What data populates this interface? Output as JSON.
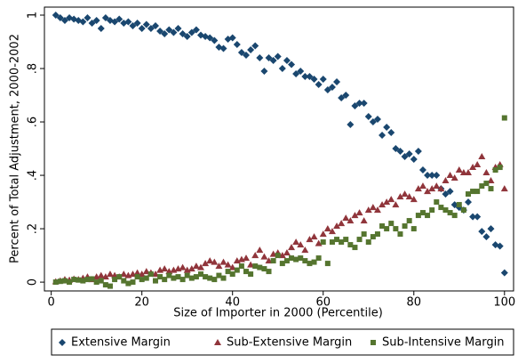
{
  "chart_data": {
    "type": "scatter",
    "xlabel": "Size of Importer in 2000 (Percentile)",
    "ylabel": "Percent of Total Adjustment, 2000-2002",
    "x": [
      1,
      2,
      3,
      4,
      5,
      6,
      7,
      8,
      9,
      10,
      11,
      12,
      13,
      14,
      15,
      16,
      17,
      18,
      19,
      20,
      21,
      22,
      23,
      24,
      25,
      26,
      27,
      28,
      29,
      30,
      31,
      32,
      33,
      34,
      35,
      36,
      37,
      38,
      39,
      40,
      41,
      42,
      43,
      44,
      45,
      46,
      47,
      48,
      49,
      50,
      51,
      52,
      53,
      54,
      55,
      56,
      57,
      58,
      59,
      60,
      61,
      62,
      63,
      64,
      65,
      66,
      67,
      68,
      69,
      70,
      71,
      72,
      73,
      74,
      75,
      76,
      77,
      78,
      79,
      80,
      81,
      82,
      83,
      84,
      85,
      86,
      87,
      88,
      89,
      90,
      91,
      92,
      93,
      94,
      95,
      96,
      97,
      98,
      99,
      100
    ],
    "xlim": [
      -1.5,
      102
    ],
    "ylim": [
      -0.033,
      1.03
    ],
    "xticks": [
      0,
      20,
      40,
      60,
      80,
      100
    ],
    "yticks": [
      0,
      {
        "value": 0.2,
        "label": ".2"
      },
      {
        "value": 0.4,
        "label": ".4"
      },
      {
        "value": 0.6,
        "label": ".6"
      },
      {
        "value": 0.8,
        "label": ".8"
      },
      1
    ],
    "legend": "bottom",
    "series": [
      {
        "name": "Extensive Margin",
        "color": "#1a476f",
        "marker": "diamond",
        "values": [
          1.0,
          0.99,
          0.98,
          0.99,
          0.985,
          0.98,
          0.975,
          0.99,
          0.97,
          0.98,
          0.95,
          0.99,
          0.98,
          0.975,
          0.985,
          0.97,
          0.975,
          0.96,
          0.97,
          0.95,
          0.965,
          0.95,
          0.96,
          0.94,
          0.93,
          0.945,
          0.935,
          0.95,
          0.93,
          0.92,
          0.935,
          0.945,
          0.925,
          0.92,
          0.915,
          0.905,
          0.88,
          0.875,
          0.91,
          0.915,
          0.89,
          0.86,
          0.85,
          0.87,
          0.885,
          0.84,
          0.79,
          0.84,
          0.83,
          0.845,
          0.8,
          0.83,
          0.815,
          0.78,
          0.79,
          0.77,
          0.77,
          0.76,
          0.74,
          0.76,
          0.72,
          0.73,
          0.75,
          0.69,
          0.7,
          0.59,
          0.66,
          0.67,
          0.67,
          0.62,
          0.6,
          0.61,
          0.55,
          0.58,
          0.56,
          0.5,
          0.49,
          0.47,
          0.48,
          0.46,
          0.49,
          0.42,
          0.4,
          0.4,
          0.4,
          0.35,
          0.33,
          0.34,
          0.29,
          0.28,
          0.27,
          0.3,
          0.245,
          0.245,
          0.19,
          0.17,
          0.2,
          0.14,
          0.135,
          0.035
        ]
      },
      {
        "name": "Sub-Extensive Margin",
        "color": "#90353b",
        "marker": "triangle",
        "values": [
          0.002,
          0.005,
          0.01,
          0.008,
          0.012,
          0.01,
          0.015,
          0.02,
          0.01,
          0.02,
          0.025,
          0.02,
          0.03,
          0.025,
          0.02,
          0.03,
          0.025,
          0.03,
          0.035,
          0.03,
          0.04,
          0.035,
          0.03,
          0.045,
          0.05,
          0.04,
          0.045,
          0.05,
          0.055,
          0.045,
          0.05,
          0.06,
          0.055,
          0.07,
          0.08,
          0.075,
          0.06,
          0.075,
          0.065,
          0.055,
          0.08,
          0.085,
          0.09,
          0.065,
          0.1,
          0.12,
          0.095,
          0.08,
          0.105,
          0.11,
          0.1,
          0.11,
          0.13,
          0.15,
          0.14,
          0.12,
          0.16,
          0.17,
          0.145,
          0.18,
          0.2,
          0.19,
          0.21,
          0.22,
          0.24,
          0.23,
          0.25,
          0.26,
          0.23,
          0.27,
          0.28,
          0.27,
          0.29,
          0.3,
          0.31,
          0.29,
          0.32,
          0.33,
          0.32,
          0.31,
          0.35,
          0.36,
          0.34,
          0.35,
          0.36,
          0.35,
          0.38,
          0.4,
          0.39,
          0.42,
          0.41,
          0.41,
          0.43,
          0.44,
          0.47,
          0.41,
          0.38,
          0.43,
          0.44,
          0.35
        ]
      },
      {
        "name": "Sub-Intensive Margin",
        "color": "#55752f",
        "marker": "square",
        "values": [
          0.0,
          0.003,
          0.005,
          0.0,
          0.01,
          0.008,
          0.005,
          0.01,
          0.012,
          0.0,
          0.005,
          -0.01,
          -0.015,
          0.01,
          0.02,
          0.005,
          -0.005,
          0.0,
          0.02,
          0.01,
          0.015,
          0.03,
          0.005,
          0.02,
          0.01,
          0.025,
          0.015,
          0.02,
          0.01,
          0.025,
          0.015,
          0.02,
          0.03,
          0.02,
          0.015,
          0.01,
          0.025,
          0.015,
          0.04,
          0.03,
          0.045,
          0.06,
          0.04,
          0.03,
          0.06,
          0.055,
          0.05,
          0.04,
          0.08,
          0.1,
          0.07,
          0.08,
          0.09,
          0.085,
          0.09,
          0.08,
          0.07,
          0.075,
          0.09,
          0.15,
          0.07,
          0.15,
          0.16,
          0.15,
          0.16,
          0.14,
          0.13,
          0.16,
          0.18,
          0.15,
          0.17,
          0.18,
          0.21,
          0.2,
          0.22,
          0.2,
          0.18,
          0.21,
          0.23,
          0.2,
          0.25,
          0.26,
          0.25,
          0.27,
          0.3,
          0.28,
          0.27,
          0.26,
          0.25,
          0.29,
          0.27,
          0.33,
          0.34,
          0.34,
          0.36,
          0.37,
          0.35,
          0.42,
          0.43,
          0.615
        ]
      }
    ]
  }
}
